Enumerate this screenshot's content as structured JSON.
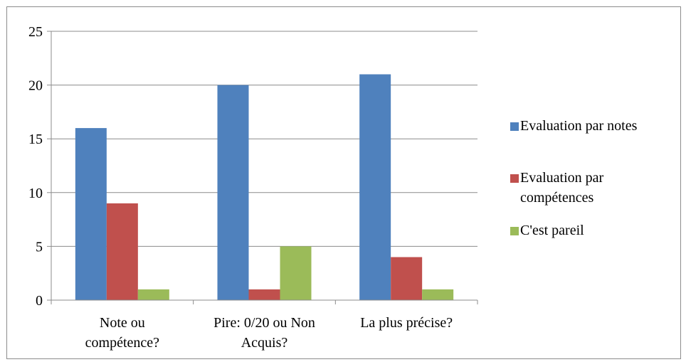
{
  "chart_data": {
    "type": "bar",
    "categories": [
      [
        "Note ou",
        "compétence?"
      ],
      [
        "Pire: 0/20 ou Non",
        "Acquis?"
      ],
      [
        "La plus précise?"
      ]
    ],
    "series": [
      {
        "name": [
          "Evaluation par notes"
        ],
        "color": "#4f81bd",
        "values": [
          16,
          20,
          21
        ]
      },
      {
        "name": [
          "Evaluation par",
          "compétences"
        ],
        "color": "#c0504d",
        "values": [
          9,
          1,
          4
        ]
      },
      {
        "name": [
          "C'est pareil"
        ],
        "color": "#9bbb59",
        "values": [
          1,
          5,
          1
        ]
      }
    ],
    "yticks": [
      "0",
      "5",
      "10",
      "15",
      "20",
      "25"
    ],
    "ylim": [
      0,
      25
    ],
    "grid": true,
    "legend": "right"
  }
}
